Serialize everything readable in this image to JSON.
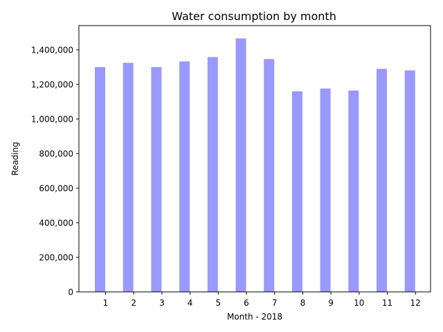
{
  "chart_data": {
    "type": "bar",
    "title": "Water consumption by month",
    "xlabel": "Month - 2018",
    "ylabel": "Reading",
    "categories": [
      "1",
      "2",
      "3",
      "4",
      "5",
      "6",
      "7",
      "8",
      "9",
      "10",
      "11",
      "12"
    ],
    "values": [
      1300000,
      1325000,
      1300000,
      1333000,
      1358000,
      1466000,
      1347000,
      1160000,
      1176000,
      1165000,
      1290000,
      1281000
    ],
    "ylim": [
      0,
      1540000
    ],
    "yticks": [
      0,
      200000,
      400000,
      600000,
      800000,
      1000000,
      1200000,
      1400000
    ],
    "ytick_labels": [
      "0",
      "200,000",
      "400,000",
      "600,000",
      "800,000",
      "1,000,000",
      "1,200,000",
      "1,400,000"
    ],
    "bar_color": "#9999ff",
    "grid": false,
    "legend": "none"
  }
}
